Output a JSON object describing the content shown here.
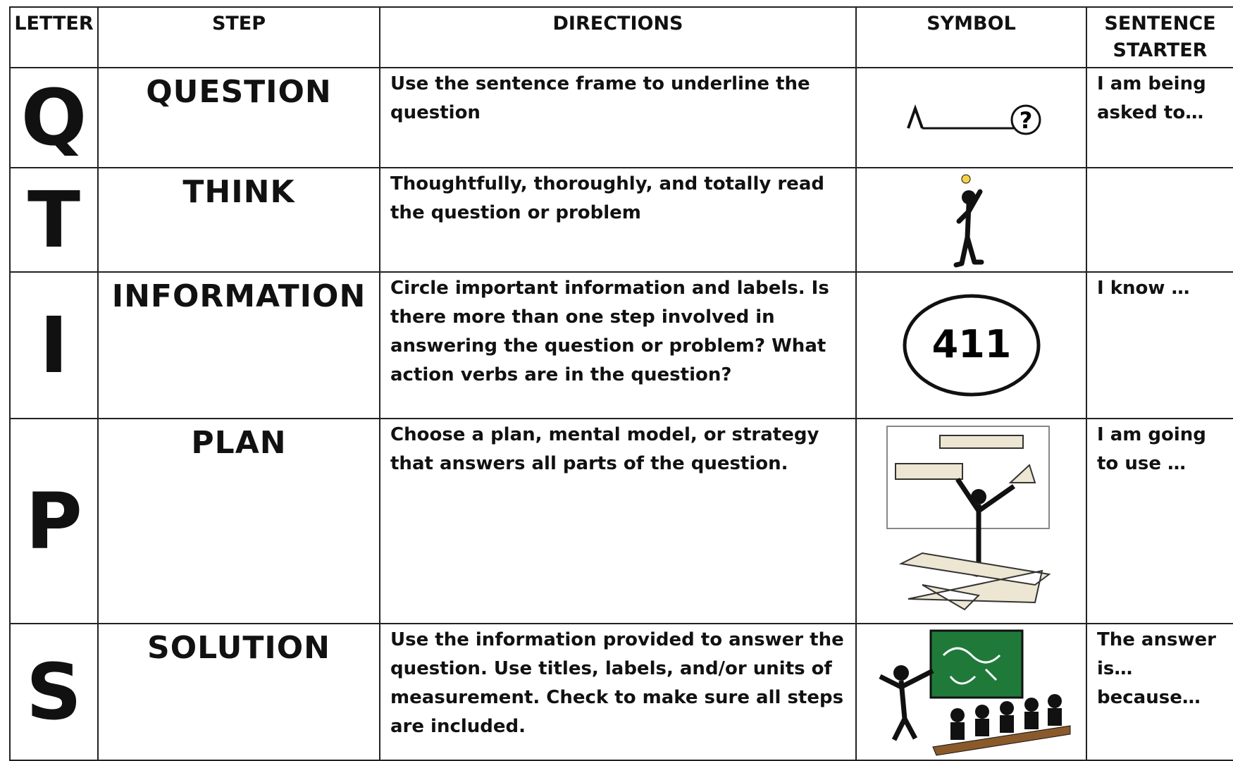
{
  "table": {
    "header": [
      "LETTER",
      "STEP",
      "DIRECTIONS",
      "SYMBOL",
      "SENTENCE STARTER"
    ],
    "rows": [
      {
        "letter": "Q",
        "step": "QUESTION",
        "directions": "Use the sentence frame to underline the question",
        "starter": "I am being asked to…"
      },
      {
        "letter": "T",
        "step": "THINK",
        "directions": "Thoughtfully, thoroughly, and totally read the question or problem"
      },
      {
        "letter": "I",
        "step": "INFORMATION",
        "directions": "Circle important information and labels. Is there more than one step involved in answering the question or problem? What action verbs are in the question?",
        "symbol_text": "411",
        "starter": "I know …"
      },
      {
        "letter": "P",
        "step": "PLAN",
        "directions": "Choose a plan, mental model, or strategy that answers all parts of the question.",
        "starter": "I am going to use …"
      },
      {
        "letter": "S",
        "step": "SOLUTION",
        "directions": "Use the information provided to answer the question. Use titles, labels, and/or units of measurement. Check to make sure all steps are included.",
        "starter": "The answer is… because…"
      }
    ]
  }
}
